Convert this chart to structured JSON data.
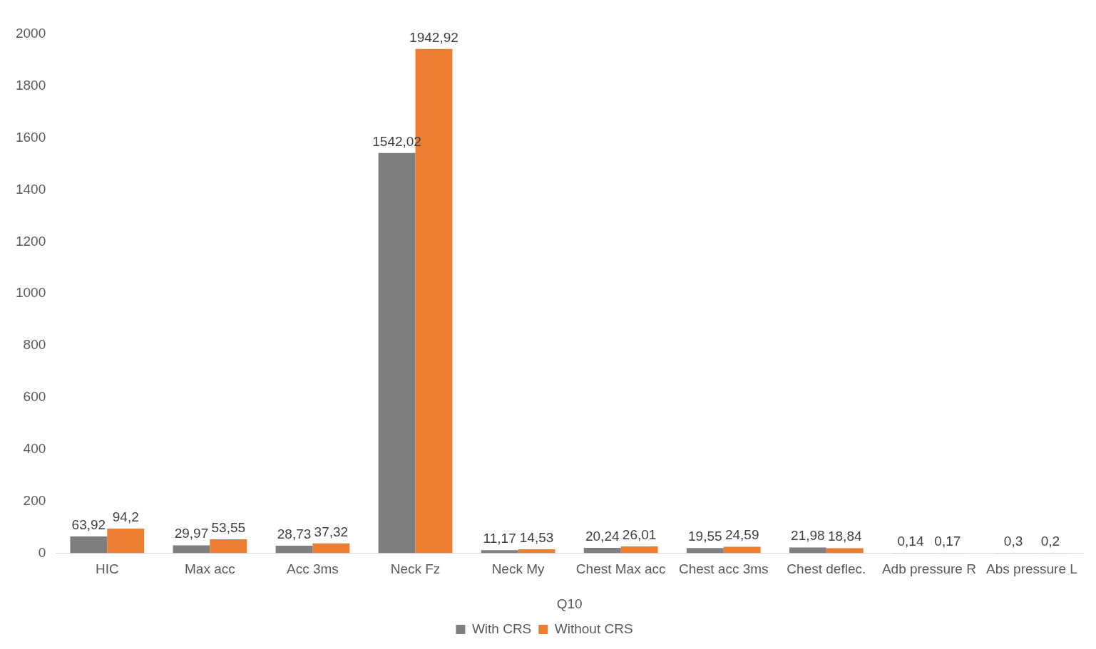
{
  "chart_data": {
    "type": "bar",
    "xlabel": "Q10",
    "categories": [
      "HIC",
      "Max acc",
      "Acc 3ms",
      "Neck Fz",
      "Neck My",
      "Chest Max acc",
      "Chest acc 3ms",
      "Chest deflec.",
      "Adb pressure R",
      "Abs pressure L"
    ],
    "series": [
      {
        "name": "With CRS",
        "color": "#7f7f7f",
        "values": [
          63.92,
          29.97,
          28.73,
          1542.02,
          11.17,
          20.24,
          19.55,
          21.98,
          0.14,
          0.3
        ],
        "value_labels": [
          "63,92",
          "29,97",
          "28,73",
          "1542,02",
          "11,17",
          "20,24",
          "19,55",
          "21,98",
          "0,14",
          "0,3"
        ]
      },
      {
        "name": "Without CRS",
        "color": "#ed7d31",
        "values": [
          94.2,
          53.55,
          37.32,
          1942.92,
          14.53,
          26.01,
          24.59,
          18.84,
          0.17,
          0.2
        ],
        "value_labels": [
          "94,2",
          "53,55",
          "37,32",
          "1942,92",
          "14,53",
          "26,01",
          "24,59",
          "18,84",
          "0,17",
          "0,2"
        ]
      }
    ],
    "ylim": [
      0,
      2000
    ],
    "yticks": [
      0,
      200,
      400,
      600,
      800,
      1000,
      1200,
      1400,
      1600,
      1800,
      2000
    ],
    "grid": false,
    "legend": "bottom"
  }
}
